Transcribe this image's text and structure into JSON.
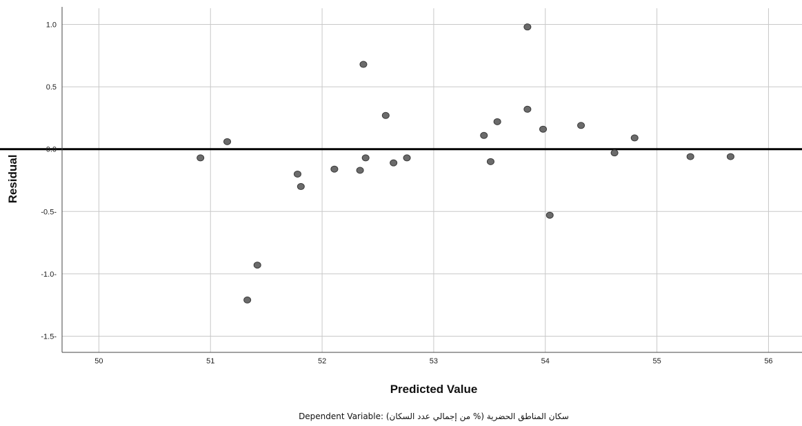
{
  "chart_data": {
    "type": "scatter",
    "title": "",
    "xlabel": "Predicted Value",
    "ylabel": "Residual",
    "footnote": "Dependent Variable: سكان المناطق الحضرية (% من إجمالي عدد السكان)",
    "xlim": [
      49.67,
      56.3
    ],
    "ylim": [
      -1.63,
      1.13
    ],
    "x_ticks": [
      "50",
      "51",
      "52",
      "53",
      "54",
      "55",
      "56"
    ],
    "y_ticks": [
      "1.0",
      "0.5",
      "0.0",
      "-0.5-",
      "-1.0-",
      "-1.5-"
    ],
    "x_tick_values": [
      50,
      51,
      52,
      53,
      54,
      55,
      56
    ],
    "y_tick_values": [
      1.0,
      0.5,
      0.0,
      -0.5,
      -1.0,
      -1.5
    ],
    "grid": true,
    "reference_line": 0.0,
    "colors": {
      "marker": "#6b6b6b",
      "grid": "#c8c8c8",
      "reference": "#000000",
      "plot_bg": "#ffffff"
    },
    "points": [
      {
        "x": 50.91,
        "y": -0.07
      },
      {
        "x": 51.15,
        "y": 0.06
      },
      {
        "x": 51.33,
        "y": -1.21
      },
      {
        "x": 51.42,
        "y": -0.93
      },
      {
        "x": 51.78,
        "y": -0.2
      },
      {
        "x": 51.81,
        "y": -0.3
      },
      {
        "x": 52.11,
        "y": -0.16
      },
      {
        "x": 52.34,
        "y": -0.17
      },
      {
        "x": 52.37,
        "y": 0.68
      },
      {
        "x": 52.39,
        "y": -0.07
      },
      {
        "x": 52.57,
        "y": 0.27
      },
      {
        "x": 52.64,
        "y": -0.11
      },
      {
        "x": 52.76,
        "y": -0.07
      },
      {
        "x": 53.45,
        "y": 0.11
      },
      {
        "x": 53.51,
        "y": -0.1
      },
      {
        "x": 53.57,
        "y": 0.22
      },
      {
        "x": 53.84,
        "y": 0.98
      },
      {
        "x": 53.84,
        "y": 0.32
      },
      {
        "x": 53.98,
        "y": 0.16
      },
      {
        "x": 54.04,
        "y": -0.53
      },
      {
        "x": 54.32,
        "y": 0.19
      },
      {
        "x": 54.62,
        "y": -0.03
      },
      {
        "x": 54.8,
        "y": 0.09
      },
      {
        "x": 55.3,
        "y": -0.06
      },
      {
        "x": 55.66,
        "y": -0.06
      }
    ]
  }
}
